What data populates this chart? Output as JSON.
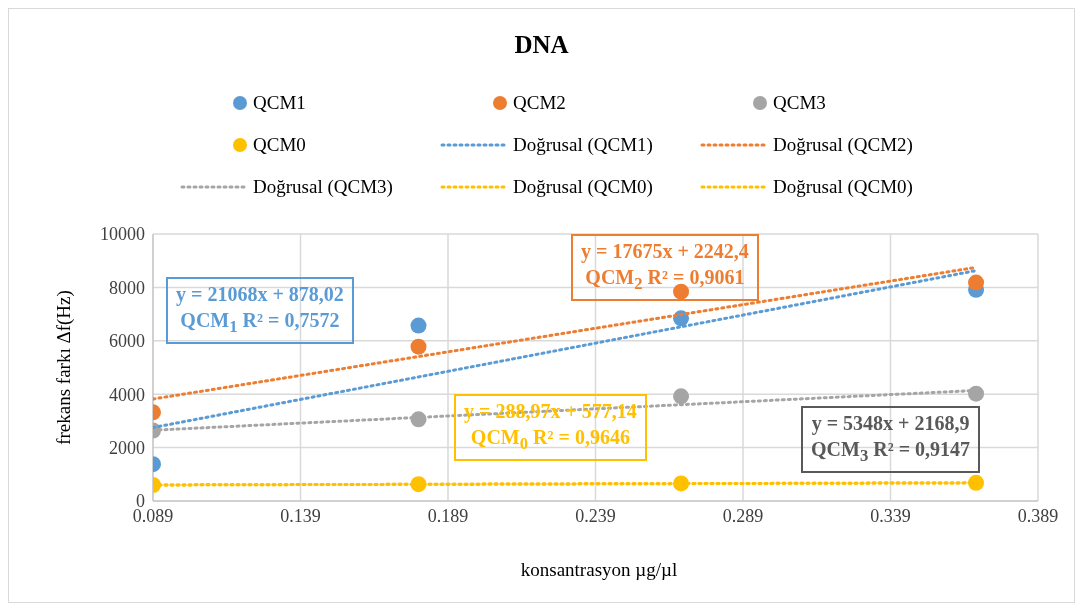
{
  "chart_data": {
    "type": "scatter",
    "title": "DNA",
    "xlabel": "konsantrasyon µg/µl",
    "ylabel": "frekans farkı Δf(Hz)",
    "xlim": [
      0.089,
      0.389
    ],
    "xticks": [
      0.089,
      0.139,
      0.189,
      0.239,
      0.289,
      0.339,
      0.389
    ],
    "ylim": [
      0,
      10000
    ],
    "yticks": [
      0,
      2000,
      4000,
      6000,
      8000,
      10000
    ],
    "grid": true,
    "legend": "top",
    "line_style": "dotted",
    "series": [
      {
        "name": "QCM1",
        "marker": "circle",
        "color": "#5b9bd5",
        "x": [
          0.089,
          0.179,
          0.268,
          0.368
        ],
        "values": [
          1380,
          6570,
          6840,
          7910
        ]
      },
      {
        "name": "QCM2",
        "marker": "circle",
        "color": "#ed7d31",
        "x": [
          0.089,
          0.179,
          0.268,
          0.368
        ],
        "values": [
          3320,
          5780,
          7840,
          8180
        ]
      },
      {
        "name": "QCM3",
        "marker": "circle",
        "color": "#a5a5a5",
        "x": [
          0.089,
          0.179,
          0.268,
          0.368
        ],
        "values": [
          2640,
          3060,
          3920,
          4020
        ]
      },
      {
        "name": "QCM0",
        "marker": "circle",
        "color": "#ffc000",
        "x": [
          0.089,
          0.179,
          0.268,
          0.368
        ],
        "values": [
          600,
          630,
          660,
          680
        ]
      },
      {
        "name": "Doğrusal (QCM1)",
        "type": "line",
        "marker": "none",
        "color": "#5b9bd5",
        "x": [
          0.089,
          0.368
        ],
        "values": [
          2750,
          8630
        ]
      },
      {
        "name": "Doğrusal (QCM2)",
        "type": "line",
        "marker": "none",
        "color": "#ed7d31",
        "x": [
          0.089,
          0.368
        ],
        "values": [
          3820,
          8750
        ]
      },
      {
        "name": "Doğrusal (QCM3)",
        "type": "line",
        "marker": "none",
        "color": "#a5a5a5",
        "x": [
          0.089,
          0.368
        ],
        "values": [
          2650,
          4140
        ]
      },
      {
        "name": "Doğrusal (QCM0)",
        "type": "line",
        "marker": "none",
        "color": "#ffc000",
        "x": [
          0.089,
          0.368
        ],
        "values": [
          600,
          680
        ]
      },
      {
        "name": "Doğrusal (QCM0)",
        "type": "line",
        "marker": "none",
        "color": "#ffc000",
        "x": [
          0.089,
          0.368
        ],
        "values": [
          600,
          680
        ]
      }
    ],
    "annotations": [
      "y = 21068x + 878,02\nQCM$_{1}$ R² = 0,7572",
      "y = 17675x + 2242,4\nQCM$_{2}$ R² = 0,9061",
      "y = 5348x + 2168,9\nQCM$_{3}$ R² = 0,9147",
      "y = 288,97x + 577,14\nQCM$_{0}$ R² = 0,9646"
    ]
  }
}
